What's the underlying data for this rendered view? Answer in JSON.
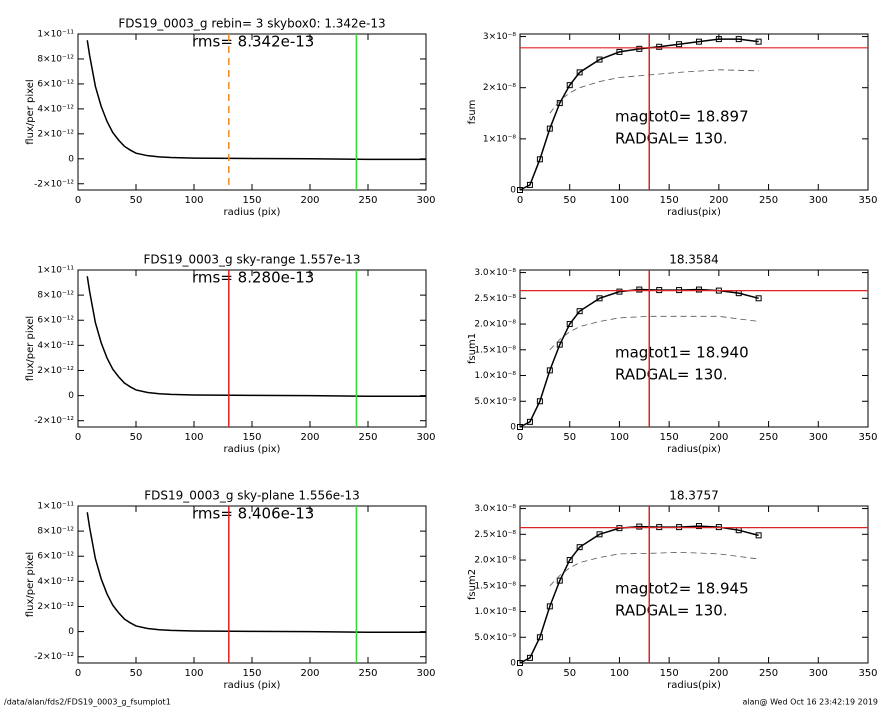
{
  "chart_data": [
    {
      "type": "line",
      "title": "FDS19_0003_g rebin= 3   skybox0:  1.342e-13",
      "annotations": [
        "rms= 8.342e-13"
      ],
      "xlabel": "radius (pix)",
      "ylabel": "flux/per pixel",
      "xlim": [
        0,
        300
      ],
      "ylim": [
        -2.5e-12,
        1e-11
      ],
      "xticks": [
        0,
        50,
        100,
        150,
        200,
        250,
        300
      ],
      "yticks": [
        {
          "value": -2e-12,
          "label": "-2×10⁻¹²"
        },
        0,
        {
          "value": 2e-12,
          "label": "2×10⁻¹²"
        },
        {
          "value": 4e-12,
          "label": "4×10⁻¹²"
        },
        {
          "value": 6e-12,
          "label": "6×10⁻¹²"
        },
        {
          "value": 8e-12,
          "label": "8×10⁻¹²"
        },
        {
          "value": 1e-11,
          "label": "1×10⁻¹¹"
        }
      ],
      "vlines": [
        {
          "x": 130,
          "color": "#f08c1c",
          "dash": true
        },
        {
          "x": 240,
          "color": "#33dd33",
          "dash": false
        }
      ],
      "series": [
        {
          "color": "#000000",
          "x": [
            8,
            10,
            15,
            20,
            25,
            30,
            35,
            40,
            45,
            50,
            60,
            70,
            80,
            100,
            150,
            200,
            250,
            300
          ],
          "values": [
            9.5e-12,
            8.3e-12,
            5.8e-12,
            4.2e-12,
            3e-12,
            2.1e-12,
            1.5e-12,
            1e-12,
            7e-13,
            4.5e-13,
            2.5e-13,
            1.5e-13,
            1e-13,
            5e-14,
            2e-14,
            0,
            -5e-14,
            -5e-14
          ]
        }
      ]
    },
    {
      "type": "line",
      "annotations": [
        "magtot0=  18.897",
        "RADGAL=    130."
      ],
      "xlabel": "radius(pix)",
      "ylabel": "fsum",
      "xlim": [
        0,
        350
      ],
      "ylim": [
        0,
        3.05e-08
      ],
      "xticks": [
        0,
        50,
        100,
        150,
        200,
        250,
        300,
        350
      ],
      "yticks": [
        0,
        {
          "value": 1e-08,
          "label": "1×10⁻⁸"
        },
        {
          "value": 2e-08,
          "label": "2×10⁻⁸"
        },
        {
          "value": 3e-08,
          "label": "3×10⁻⁸"
        }
      ],
      "vlines": [
        {
          "x": 130,
          "color": "#dd2222",
          "dash": false
        }
      ],
      "hlines": [
        {
          "y": 2.78e-08,
          "color": "#dd2222"
        }
      ],
      "series": [
        {
          "color": "#000000",
          "marker": "square",
          "x": [
            0,
            10,
            20,
            30,
            40,
            50,
            60,
            80,
            100,
            120,
            140,
            160,
            180,
            200,
            220,
            240
          ],
          "values": [
            0,
            1e-09,
            6e-09,
            1.2e-08,
            1.7e-08,
            2.05e-08,
            2.3e-08,
            2.55e-08,
            2.7e-08,
            2.76e-08,
            2.8e-08,
            2.85e-08,
            2.9e-08,
            2.95e-08,
            2.95e-08,
            2.9e-08
          ]
        },
        {
          "color": "#555555",
          "dash": true,
          "x": [
            30,
            40,
            50,
            60,
            80,
            100,
            130,
            160,
            200,
            240
          ],
          "values": [
            1.5e-08,
            1.75e-08,
            1.9e-08,
            2e-08,
            2.12e-08,
            2.2e-08,
            2.25e-08,
            2.3e-08,
            2.35e-08,
            2.33e-08
          ]
        }
      ]
    },
    {
      "type": "line",
      "title": "FDS19_0003_g sky-range  1.557e-13",
      "annotations": [
        "rms= 8.280e-13"
      ],
      "xlabel": "radius (pix)",
      "ylabel": "flux/per pixel",
      "xlim": [
        0,
        300
      ],
      "ylim": [
        -2.5e-12,
        1e-11
      ],
      "xticks": [
        0,
        50,
        100,
        150,
        200,
        250,
        300
      ],
      "yticks": [
        {
          "value": -2e-12,
          "label": "-2×10⁻¹²"
        },
        0,
        {
          "value": 2e-12,
          "label": "2×10⁻¹²"
        },
        {
          "value": 4e-12,
          "label": "4×10⁻¹²"
        },
        {
          "value": 6e-12,
          "label": "6×10⁻¹²"
        },
        {
          "value": 8e-12,
          "label": "8×10⁻¹²"
        },
        {
          "value": 1e-11,
          "label": "1×10⁻¹¹"
        }
      ],
      "vlines": [
        {
          "x": 130,
          "color": "#dd2222",
          "dash": false
        },
        {
          "x": 240,
          "color": "#33dd33",
          "dash": false
        }
      ],
      "series": [
        {
          "color": "#000000",
          "x": [
            8,
            10,
            15,
            20,
            25,
            30,
            35,
            40,
            45,
            50,
            60,
            70,
            80,
            100,
            150,
            200,
            250,
            300
          ],
          "values": [
            9.5e-12,
            8.3e-12,
            5.8e-12,
            4.2e-12,
            3e-12,
            2.1e-12,
            1.5e-12,
            1e-12,
            7e-13,
            4.5e-13,
            2.5e-13,
            1.5e-13,
            1e-13,
            5e-14,
            2e-14,
            0,
            -5e-14,
            -5e-14
          ]
        }
      ]
    },
    {
      "type": "line",
      "title": "18.3584",
      "annotations": [
        "magtot1=  18.940",
        "RADGAL=    130."
      ],
      "xlabel": "radius(pix)",
      "ylabel": "fsum1",
      "xlim": [
        0,
        350
      ],
      "ylim": [
        0,
        3.05e-08
      ],
      "xticks": [
        0,
        50,
        100,
        150,
        200,
        250,
        300,
        350
      ],
      "yticks": [
        0,
        {
          "value": 5e-09,
          "label": "5.0×10⁻⁹"
        },
        {
          "value": 1e-08,
          "label": "1.0×10⁻⁸"
        },
        {
          "value": 1.5e-08,
          "label": "1.5×10⁻⁸"
        },
        {
          "value": 2e-08,
          "label": "2.0×10⁻⁸"
        },
        {
          "value": 2.5e-08,
          "label": "2.5×10⁻⁸"
        },
        {
          "value": 3e-08,
          "label": "3.0×10⁻⁸"
        }
      ],
      "vlines": [
        {
          "x": 130,
          "color": "#dd2222",
          "dash": false
        }
      ],
      "hlines": [
        {
          "y": 2.65e-08,
          "color": "#dd2222"
        }
      ],
      "series": [
        {
          "color": "#000000",
          "marker": "square",
          "x": [
            0,
            10,
            20,
            30,
            40,
            50,
            60,
            80,
            100,
            120,
            140,
            160,
            180,
            200,
            220,
            240
          ],
          "values": [
            0,
            1e-09,
            5e-09,
            1.1e-08,
            1.6e-08,
            2e-08,
            2.25e-08,
            2.5e-08,
            2.63e-08,
            2.67e-08,
            2.66e-08,
            2.66e-08,
            2.67e-08,
            2.65e-08,
            2.6e-08,
            2.5e-08
          ]
        },
        {
          "color": "#555555",
          "dash": true,
          "x": [
            30,
            40,
            50,
            60,
            80,
            100,
            130,
            160,
            200,
            240
          ],
          "values": [
            1.5e-08,
            1.7e-08,
            1.85e-08,
            1.95e-08,
            2.05e-08,
            2.12e-08,
            2.15e-08,
            2.15e-08,
            2.15e-08,
            2.05e-08
          ]
        }
      ]
    },
    {
      "type": "line",
      "title": "FDS19_0003_g sky-plane  1.556e-13",
      "annotations": [
        "rms= 8.406e-13"
      ],
      "xlabel": "radius (pix)",
      "ylabel": "flux/per pixel",
      "xlim": [
        0,
        300
      ],
      "ylim": [
        -2.5e-12,
        1e-11
      ],
      "xticks": [
        0,
        50,
        100,
        150,
        200,
        250,
        300
      ],
      "yticks": [
        {
          "value": -2e-12,
          "label": "-2×10⁻¹²"
        },
        0,
        {
          "value": 2e-12,
          "label": "2×10⁻¹²"
        },
        {
          "value": 4e-12,
          "label": "4×10⁻¹²"
        },
        {
          "value": 6e-12,
          "label": "6×10⁻¹²"
        },
        {
          "value": 8e-12,
          "label": "8×10⁻¹²"
        },
        {
          "value": 1e-11,
          "label": "1×10⁻¹¹"
        }
      ],
      "vlines": [
        {
          "x": 130,
          "color": "#dd2222",
          "dash": false
        },
        {
          "x": 240,
          "color": "#33dd33",
          "dash": false
        }
      ],
      "series": [
        {
          "color": "#000000",
          "x": [
            8,
            10,
            15,
            20,
            25,
            30,
            35,
            40,
            45,
            50,
            60,
            70,
            80,
            100,
            150,
            200,
            250,
            300
          ],
          "values": [
            9.5e-12,
            8.3e-12,
            5.8e-12,
            4.2e-12,
            3e-12,
            2.1e-12,
            1.5e-12,
            1e-12,
            7e-13,
            4.5e-13,
            2.5e-13,
            1.5e-13,
            1e-13,
            5e-14,
            2e-14,
            0,
            -5e-14,
            -5e-14
          ]
        }
      ]
    },
    {
      "type": "line",
      "title": "18.3757",
      "annotations": [
        "magtot2=  18.945",
        "RADGAL=    130."
      ],
      "xlabel": "radius(pix)",
      "ylabel": "fsum2",
      "xlim": [
        0,
        350
      ],
      "ylim": [
        0,
        3.05e-08
      ],
      "xticks": [
        0,
        50,
        100,
        150,
        200,
        250,
        300,
        350
      ],
      "yticks": [
        0,
        {
          "value": 5e-09,
          "label": "5.0×10⁻⁹"
        },
        {
          "value": 1e-08,
          "label": "1.0×10⁻⁸"
        },
        {
          "value": 1.5e-08,
          "label": "1.5×10⁻⁸"
        },
        {
          "value": 2e-08,
          "label": "2.0×10⁻⁸"
        },
        {
          "value": 2.5e-08,
          "label": "2.5×10⁻⁸"
        },
        {
          "value": 3e-08,
          "label": "3.0×10⁻⁸"
        }
      ],
      "vlines": [
        {
          "x": 130,
          "color": "#dd2222",
          "dash": false
        }
      ],
      "hlines": [
        {
          "y": 2.63e-08,
          "color": "#dd2222"
        }
      ],
      "series": [
        {
          "color": "#000000",
          "marker": "square",
          "x": [
            0,
            10,
            20,
            30,
            40,
            50,
            60,
            80,
            100,
            120,
            140,
            160,
            180,
            200,
            220,
            240
          ],
          "values": [
            0,
            1e-09,
            5e-09,
            1.1e-08,
            1.6e-08,
            2e-08,
            2.25e-08,
            2.5e-08,
            2.62e-08,
            2.65e-08,
            2.64e-08,
            2.64e-08,
            2.66e-08,
            2.64e-08,
            2.58e-08,
            2.48e-08
          ]
        },
        {
          "color": "#555555",
          "dash": true,
          "x": [
            30,
            40,
            50,
            60,
            80,
            100,
            130,
            160,
            200,
            240
          ],
          "values": [
            1.5e-08,
            1.7e-08,
            1.85e-08,
            1.95e-08,
            2.05e-08,
            2.12e-08,
            2.13e-08,
            2.15e-08,
            2.12e-08,
            2.02e-08
          ]
        }
      ]
    }
  ],
  "footer": {
    "left": "/data/alan/fds2/FDS19_0003_g_fsumplot1",
    "right": "alan@  Wed Oct 16 23:42:19 2019"
  }
}
